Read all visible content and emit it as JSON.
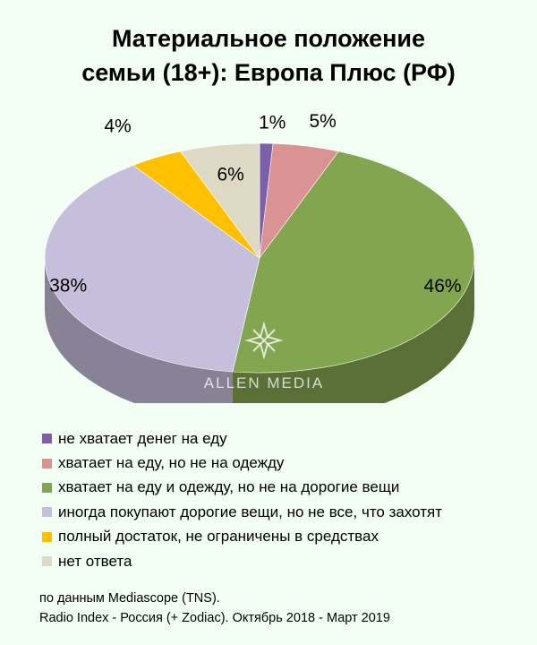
{
  "chart_data": {
    "type": "pie",
    "title_lines": [
      "Материальное положение",
      "семьи (18+): Европа Плюс (РФ)"
    ],
    "slices": [
      {
        "label": "не хватает денег на еду",
        "value": 1,
        "value_label": "1%",
        "color": "#7b5fa8"
      },
      {
        "label": "хватает на еду, но не на одежду",
        "value": 5,
        "value_label": "5%",
        "color": "#d99392"
      },
      {
        "label": "хватает на еду и одежду, но не на дорогие вещи",
        "value": 46,
        "value_label": "46%",
        "color": "#84a54f"
      },
      {
        "label": "иногда покупают дорогие вещи, но не все, что захотят",
        "value": 38,
        "value_label": "38%",
        "color": "#c6bfdb"
      },
      {
        "label": "полный достаток, не ограничены в средствах",
        "value": 4,
        "value_label": "4%",
        "color": "#ffc000"
      },
      {
        "label": "нет ответа",
        "value": 6,
        "value_label": "6%",
        "color": "#ddd9c4"
      }
    ],
    "legend_position": "bottom",
    "style": "3d"
  },
  "watermark": {
    "text": "ALLEN MEDIA",
    "icon": "sparkle-icon"
  },
  "source": {
    "line1": "по данным Mediascope (TNS).",
    "line2": "Radio Index - Россия (+ Zodiac). Октябрь 2018 - Март 2019"
  }
}
